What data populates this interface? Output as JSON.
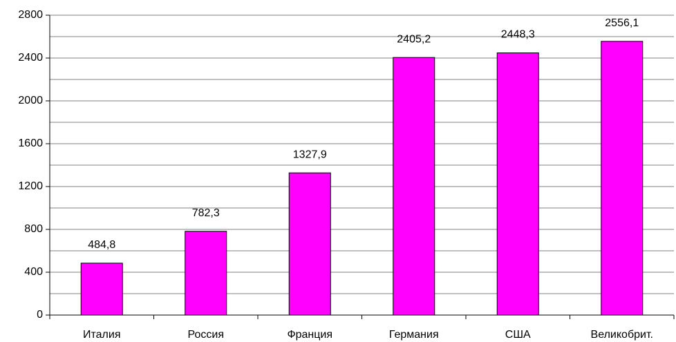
{
  "chart_data": {
    "type": "bar",
    "categories": [
      "Италия",
      "Россия",
      "Франция",
      "Германия",
      "США",
      "Великобрит."
    ],
    "values": [
      484.8,
      782.3,
      1327.9,
      2405.2,
      2448.3,
      2556.1
    ],
    "value_labels": [
      "484,8",
      "782,3",
      "1327,9",
      "2405,2",
      "2448,3",
      "2556,1"
    ],
    "color": "#ff00ff",
    "ylim": [
      0,
      2800
    ],
    "yticks": [
      0,
      400,
      800,
      1200,
      1600,
      2000,
      2400,
      2800
    ],
    "minor_yticks": [
      200,
      600,
      1000,
      1400,
      1800,
      2200,
      2600
    ],
    "grid": true
  }
}
